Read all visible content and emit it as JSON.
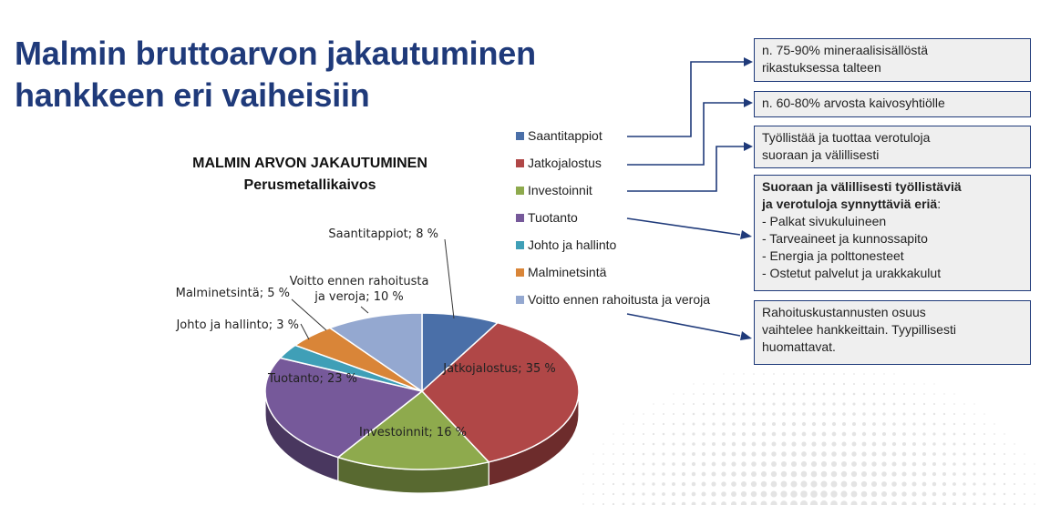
{
  "slide": {
    "title_line1": "Malmin bruttoarvon jakautuminen",
    "title_line2": "hankkeen eri  vaiheisiin"
  },
  "chart_data": {
    "type": "pie",
    "title": "MALMIN ARVON JAKAUTUMINEN",
    "subtitle": "Perusmetallikaivos",
    "categories": [
      "Saantitappiot",
      "Jatkojalostus",
      "Investoinnit",
      "Tuotanto",
      "Johto ja hallinto",
      "Malminetsintä",
      "Voitto ennen rahoitusta ja veroja"
    ],
    "values": [
      8,
      35,
      16,
      23,
      3,
      5,
      10
    ],
    "unit": "%",
    "data_labels": [
      "Saantitappiot; 8 %",
      "Jatkojalostus; 35 %",
      "Investoinnit; 16 %",
      "Tuotanto; 23 %",
      "Johto ja hallinto; 3 %",
      "Malminetsintä; 5 %",
      "Voitto ennen rahoitusta\nja veroja; 10 %"
    ],
    "colors": [
      "#4a6fa8",
      "#b04747",
      "#8eaa4d",
      "#76599a",
      "#3f9fb7",
      "#d98538",
      "#94a8d0"
    ],
    "legend_position": "right"
  },
  "boxes": [
    {
      "lines": [
        "n. 75-90% mineraalisisällöstä",
        "rikastuksessa talteen"
      ]
    },
    {
      "lines": [
        "n. 60-80% arvosta kaivosyhtiölle"
      ]
    },
    {
      "lines": [
        "Työllistää ja tuottaa verotuloja",
        "suoraan ja välillisesti"
      ]
    },
    {
      "bold_lines": [
        "Suoraan ja välillisesti työllistäviä",
        "ja verotuloja synnyttäviä eriä"
      ],
      "bold_suffix": ":",
      "lines": [
        "- Palkat sivukuluineen",
        "- Tarveaineet ja kunnossapito",
        "- Energia ja polttonesteet",
        "- Ostetut palvelut ja urakkakulut"
      ]
    },
    {
      "lines": [
        "Rahoituskustannusten osuus",
        "vaihtelee hankkeittain. Tyypillisesti",
        "huomattavat."
      ]
    }
  ],
  "colors": {
    "title": "#1f3a7a",
    "box_border": "#1f3a7a",
    "box_fill": "#efefef",
    "connector": "#1f3a7a",
    "dots": "#e4e4e4"
  }
}
